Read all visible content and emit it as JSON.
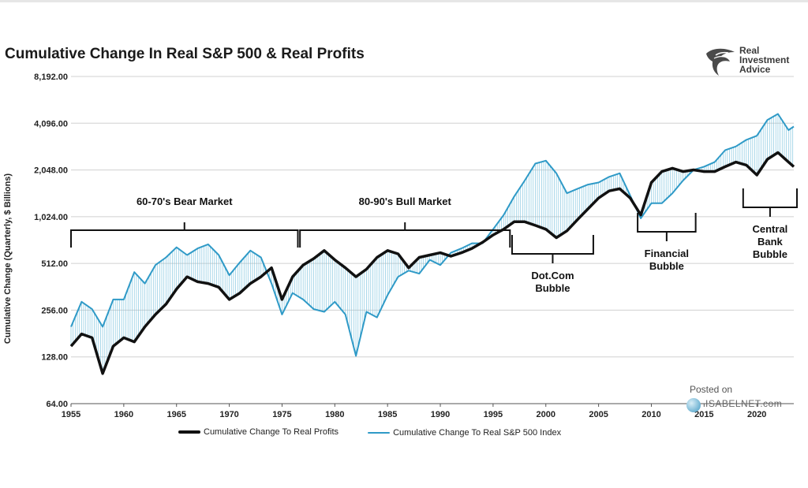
{
  "chart_data": {
    "type": "line",
    "title": "Cumulative Change In Real S&P 500 & Real Profits",
    "ylabel": "Cumulative Change (Quarterly, $ Billions)",
    "xlabel": "",
    "yscale": "log2",
    "ylim": [
      64,
      8192
    ],
    "xlim": [
      1955,
      2023.5
    ],
    "yticks": [
      {
        "value": 64,
        "label": "64.00"
      },
      {
        "value": 128,
        "label": "128.00"
      },
      {
        "value": 256,
        "label": "256.00"
      },
      {
        "value": 512,
        "label": "512.00"
      },
      {
        "value": 1024,
        "label": "1,024.00"
      },
      {
        "value": 2048,
        "label": "2,048.00"
      },
      {
        "value": 4096,
        "label": "4,096.00"
      },
      {
        "value": 8192,
        "label": "8,192.00"
      }
    ],
    "xticks": [
      1955,
      1960,
      1965,
      1970,
      1975,
      1980,
      1985,
      1990,
      1995,
      2000,
      2005,
      2010,
      2015,
      2020
    ],
    "grid": true,
    "legend_position": "bottom",
    "series": [
      {
        "name": "Cumulative Change To Real Profits",
        "color": "#111111",
        "points": [
          [
            1955,
            150
          ],
          [
            1956,
            180
          ],
          [
            1957,
            170
          ],
          [
            1958,
            100
          ],
          [
            1959,
            150
          ],
          [
            1960,
            170
          ],
          [
            1961,
            160
          ],
          [
            1962,
            200
          ],
          [
            1963,
            240
          ],
          [
            1964,
            280
          ],
          [
            1965,
            350
          ],
          [
            1966,
            420
          ],
          [
            1967,
            390
          ],
          [
            1968,
            380
          ],
          [
            1969,
            360
          ],
          [
            1970,
            300
          ],
          [
            1971,
            330
          ],
          [
            1972,
            380
          ],
          [
            1973,
            420
          ],
          [
            1974,
            480
          ],
          [
            1975,
            300
          ],
          [
            1976,
            420
          ],
          [
            1977,
            500
          ],
          [
            1978,
            550
          ],
          [
            1979,
            620
          ],
          [
            1980,
            540
          ],
          [
            1981,
            480
          ],
          [
            1982,
            420
          ],
          [
            1983,
            470
          ],
          [
            1984,
            560
          ],
          [
            1985,
            620
          ],
          [
            1986,
            590
          ],
          [
            1987,
            480
          ],
          [
            1988,
            560
          ],
          [
            1989,
            580
          ],
          [
            1990,
            600
          ],
          [
            1991,
            570
          ],
          [
            1992,
            600
          ],
          [
            1993,
            640
          ],
          [
            1994,
            700
          ],
          [
            1995,
            780
          ],
          [
            1996,
            850
          ],
          [
            1997,
            950
          ],
          [
            1998,
            950
          ],
          [
            1999,
            900
          ],
          [
            2000,
            850
          ],
          [
            2001,
            750
          ],
          [
            2002,
            830
          ],
          [
            2003,
            980
          ],
          [
            2004,
            1150
          ],
          [
            2005,
            1350
          ],
          [
            2006,
            1500
          ],
          [
            2007,
            1550
          ],
          [
            2008,
            1350
          ],
          [
            2009,
            1050
          ],
          [
            2010,
            1700
          ],
          [
            2011,
            2000
          ],
          [
            2012,
            2100
          ],
          [
            2013,
            2000
          ],
          [
            2014,
            2050
          ],
          [
            2015,
            2000
          ],
          [
            2016,
            2000
          ],
          [
            2017,
            2150
          ],
          [
            2018,
            2300
          ],
          [
            2019,
            2200
          ],
          [
            2020,
            1900
          ],
          [
            2021,
            2400
          ],
          [
            2022,
            2650
          ],
          [
            2023,
            2300
          ],
          [
            2023.5,
            2150
          ]
        ]
      },
      {
        "name": "Cumulative Change To Real S&P 500 Index",
        "color": "#2f9ac7",
        "points": [
          [
            1955,
            200
          ],
          [
            1956,
            290
          ],
          [
            1957,
            260
          ],
          [
            1958,
            200
          ],
          [
            1959,
            300
          ],
          [
            1960,
            300
          ],
          [
            1961,
            450
          ],
          [
            1962,
            380
          ],
          [
            1963,
            500
          ],
          [
            1964,
            560
          ],
          [
            1965,
            650
          ],
          [
            1966,
            580
          ],
          [
            1967,
            640
          ],
          [
            1968,
            680
          ],
          [
            1969,
            580
          ],
          [
            1970,
            430
          ],
          [
            1971,
            520
          ],
          [
            1972,
            620
          ],
          [
            1973,
            560
          ],
          [
            1974,
            380
          ],
          [
            1975,
            240
          ],
          [
            1976,
            330
          ],
          [
            1977,
            300
          ],
          [
            1978,
            260
          ],
          [
            1979,
            250
          ],
          [
            1980,
            290
          ],
          [
            1981,
            240
          ],
          [
            1982,
            130
          ],
          [
            1983,
            250
          ],
          [
            1984,
            230
          ],
          [
            1985,
            320
          ],
          [
            1986,
            420
          ],
          [
            1987,
            460
          ],
          [
            1988,
            440
          ],
          [
            1989,
            540
          ],
          [
            1990,
            500
          ],
          [
            1991,
            600
          ],
          [
            1992,
            640
          ],
          [
            1993,
            690
          ],
          [
            1994,
            690
          ],
          [
            1995,
            850
          ],
          [
            1996,
            1050
          ],
          [
            1997,
            1380
          ],
          [
            1998,
            1750
          ],
          [
            1999,
            2250
          ],
          [
            2000,
            2350
          ],
          [
            2001,
            1950
          ],
          [
            2002,
            1450
          ],
          [
            2003,
            1550
          ],
          [
            2004,
            1650
          ],
          [
            2005,
            1700
          ],
          [
            2006,
            1850
          ],
          [
            2007,
            1950
          ],
          [
            2008,
            1400
          ],
          [
            2009,
            1000
          ],
          [
            2010,
            1250
          ],
          [
            2011,
            1250
          ],
          [
            2012,
            1450
          ],
          [
            2013,
            1750
          ],
          [
            2014,
            2050
          ],
          [
            2015,
            2150
          ],
          [
            2016,
            2300
          ],
          [
            2017,
            2750
          ],
          [
            2018,
            2900
          ],
          [
            2019,
            3200
          ],
          [
            2020,
            3400
          ],
          [
            2021,
            4300
          ],
          [
            2022,
            4700
          ],
          [
            2023,
            3700
          ],
          [
            2023.5,
            3900
          ]
        ]
      }
    ],
    "annotations": [
      {
        "label": "60-70's Bear Market",
        "x_start": 1955,
        "x_end": 1976.5,
        "side": "above"
      },
      {
        "label": "80-90's Bull Market",
        "x_start": 1976.7,
        "x_end": 1996.6,
        "side": "above"
      },
      {
        "label_lines": [
          "Dot.Com",
          "Bubble"
        ],
        "x_start": 1996.8,
        "x_end": 2004.5,
        "side": "below"
      },
      {
        "label_lines": [
          "Financial",
          "Bubble"
        ],
        "x_start": 2008.7,
        "x_end": 2014.2,
        "side": "below"
      },
      {
        "label_lines": [
          "Central",
          "Bank",
          "Bubble"
        ],
        "x_start": 2018.7,
        "x_end": 2023.8,
        "side": "below"
      }
    ]
  },
  "legend": {
    "profits_label": "Cumulative Change To Real Profits",
    "sp500_label": "Cumulative Change To Real S&P 500 Index"
  },
  "logo": {
    "line1": "Real",
    "line2": "Investment",
    "line3": "Advice"
  },
  "watermark": {
    "posted": "Posted on",
    "site": "ISABELNET.com"
  }
}
